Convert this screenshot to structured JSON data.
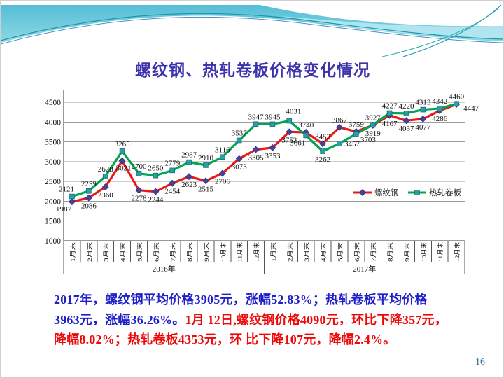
{
  "slide": {
    "title": "螺纹钢、热轧卷板价格变化情况",
    "page_number": "16"
  },
  "chart_data": {
    "type": "line",
    "title": "",
    "categories": [
      "1月末",
      "2月末",
      "3月末",
      "4月末",
      "5月末",
      "6月末",
      "7月末",
      "8月末",
      "9月末",
      "10月末",
      "11月末",
      "12月末",
      "1月末",
      "2月末",
      "3月末",
      "4月末",
      "5月末",
      "6月末",
      "7月末",
      "8月末",
      "9月末",
      "10月末",
      "11月末",
      "12月末"
    ],
    "group_labels": [
      "2016年",
      "2017年"
    ],
    "yticks": [
      1000,
      1500,
      2000,
      2500,
      3000,
      3500,
      4000,
      4500
    ],
    "ylim": [
      1000,
      4750
    ],
    "grid": "horizontal-major",
    "legend_position": "inside-right-middle",
    "series": [
      {
        "name": "螺纹钢",
        "line_color": "#e31b1b",
        "marker": "diamond",
        "marker_color": "#4444a0",
        "values": [
          1987,
          2086,
          2360,
          3021,
          2278,
          2244,
          2454,
          2623,
          2515,
          2706,
          3073,
          3305,
          3353,
          3752,
          3740,
          3452,
          3867,
          3759,
          3919,
          4167,
          4037,
          4077,
          4286,
          4447
        ]
      },
      {
        "name": "热轧卷板",
        "line_color": "#00a551",
        "marker": "square",
        "marker_color": "#2b9fa0",
        "values": [
          2121,
          2259,
          2628,
          3265,
          2700,
          2650,
          2779,
          2987,
          2910,
          3116,
          3537,
          3947,
          3945,
          4031,
          3661,
          3262,
          3457,
          3703,
          3927,
          4227,
          4220,
          4313,
          4342,
          4460
        ]
      }
    ]
  },
  "summary": {
    "colors": {
      "blue": "#1e1ecb",
      "red": "#ed0909"
    },
    "lines": [
      {
        "segments": [
          {
            "text": "2017年，螺纹钢平均价格3905元，涨幅52.83%；热轧卷板平均价格",
            "color": "blue"
          }
        ]
      },
      {
        "segments": [
          {
            "text": "3963元，涨幅36.26%。",
            "color": "blue"
          },
          {
            "text": "1月 12日,螺纹钢价格4090元，环比下降357元，",
            "color": "red"
          }
        ]
      },
      {
        "segments": [
          {
            "text": "降幅8.02%；热轧卷板4353元，环 比下降107元，降幅2.4%。",
            "color": "red"
          }
        ]
      }
    ]
  }
}
